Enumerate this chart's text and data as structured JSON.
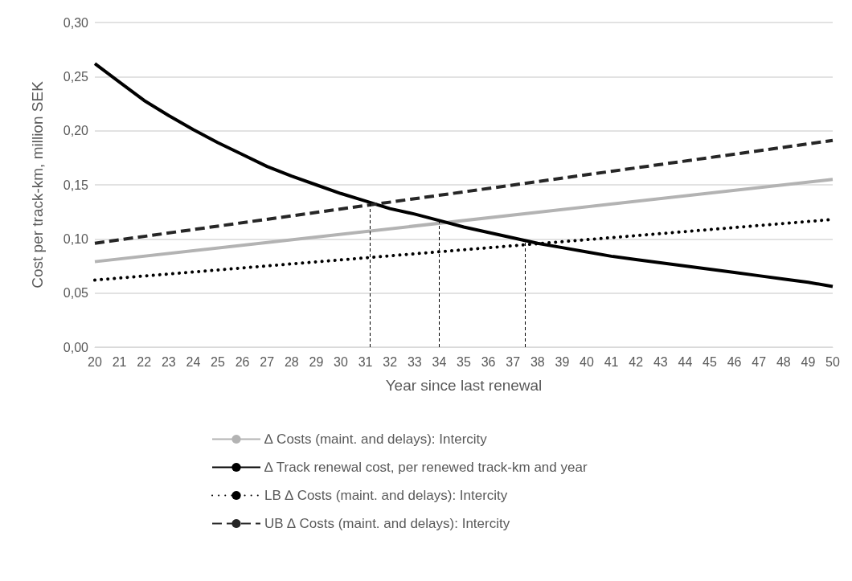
{
  "chart_data": {
    "type": "line",
    "xlabel": "Year since last renewal",
    "ylabel": "Cost per track-km, million SEK",
    "xlim": [
      20,
      50
    ],
    "xticks": [
      20,
      21,
      22,
      23,
      24,
      25,
      26,
      27,
      28,
      29,
      30,
      31,
      32,
      33,
      34,
      35,
      36,
      37,
      38,
      39,
      40,
      41,
      42,
      43,
      44,
      45,
      46,
      47,
      48,
      49,
      50
    ],
    "ylim": [
      0,
      0.3
    ],
    "yticks": [
      {
        "value": 0,
        "label": "0,00"
      },
      {
        "value": 0.05,
        "label": "0,05"
      },
      {
        "value": 0.1,
        "label": "0,10"
      },
      {
        "value": 0.15,
        "label": "0,15"
      },
      {
        "value": 0.2,
        "label": "0,20"
      },
      {
        "value": 0.25,
        "label": "0,25"
      },
      {
        "value": 0.3,
        "label": "0,30"
      }
    ],
    "grid": "y",
    "legend": "bottom",
    "marker": "none",
    "series": [
      {
        "name": "∆ Costs (maint. and delays): Intercity",
        "color": "#b3b3b3",
        "line_style": "solid",
        "x": [
          20,
          50
        ],
        "values": [
          0.079,
          0.155
        ]
      },
      {
        "name": "∆ Track renewal cost, per renewed track-km and year",
        "color": "#000000",
        "line_style": "solid",
        "x": [
          20,
          21,
          22,
          23,
          24,
          25,
          26,
          27,
          28,
          29,
          30,
          31,
          32,
          33,
          34,
          35,
          36,
          37,
          38,
          39,
          40,
          41,
          42,
          43,
          44,
          45,
          46,
          47,
          48,
          49,
          50
        ],
        "values": [
          0.262,
          0.245,
          0.228,
          0.214,
          0.201,
          0.189,
          0.178,
          0.167,
          0.158,
          0.15,
          0.142,
          0.135,
          0.128,
          0.123,
          0.117,
          0.111,
          0.106,
          0.101,
          0.096,
          0.092,
          0.088,
          0.084,
          0.081,
          0.078,
          0.075,
          0.072,
          0.069,
          0.066,
          0.063,
          0.06,
          0.056
        ]
      },
      {
        "name": "LB ∆ Costs (maint. and delays): Intercity",
        "color": "#000000",
        "line_style": "dotted",
        "x": [
          20,
          50
        ],
        "values": [
          0.062,
          0.118
        ]
      },
      {
        "name": "UB ∆ Costs (maint. and delays): Intercity",
        "color": "#262626",
        "line_style": "dashed",
        "x": [
          20,
          50
        ],
        "values": [
          0.096,
          0.191
        ]
      }
    ],
    "ref_lines": [
      {
        "axis": "x",
        "value": 31.2,
        "color": "#000000",
        "line_style": "dashed"
      },
      {
        "axis": "x",
        "value": 34,
        "color": "#000000",
        "line_style": "dashed"
      },
      {
        "axis": "x",
        "value": 37.5,
        "color": "#000000",
        "line_style": "dashed"
      }
    ]
  }
}
